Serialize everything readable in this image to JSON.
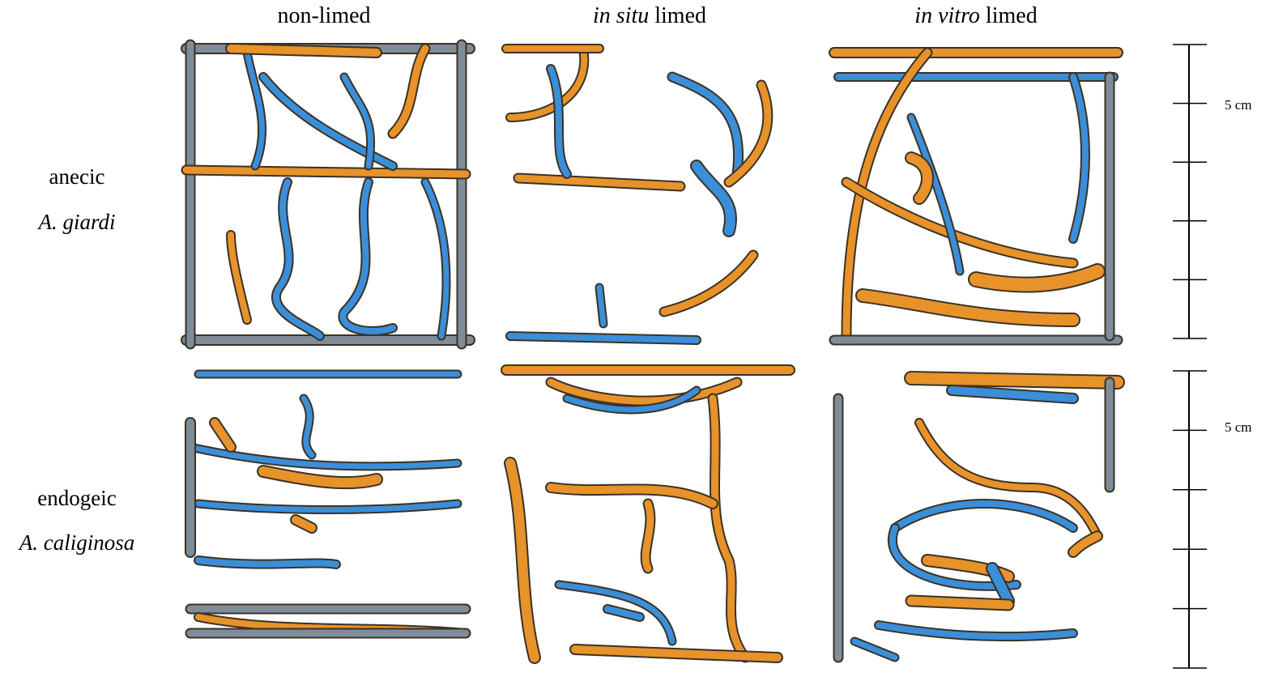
{
  "columns": [
    {
      "text": "non-limed"
    },
    {
      "italic": "in situ",
      "text": "limed"
    },
    {
      "italic": "in vitro",
      "text": "limed"
    }
  ],
  "rows": [
    {
      "group": "anecic",
      "species": "A. giardi"
    },
    {
      "group": "endogeic",
      "species": "A. caliginosa"
    }
  ],
  "scale_bars": [
    {
      "label": "5 cm"
    },
    {
      "label": "5 cm"
    }
  ]
}
